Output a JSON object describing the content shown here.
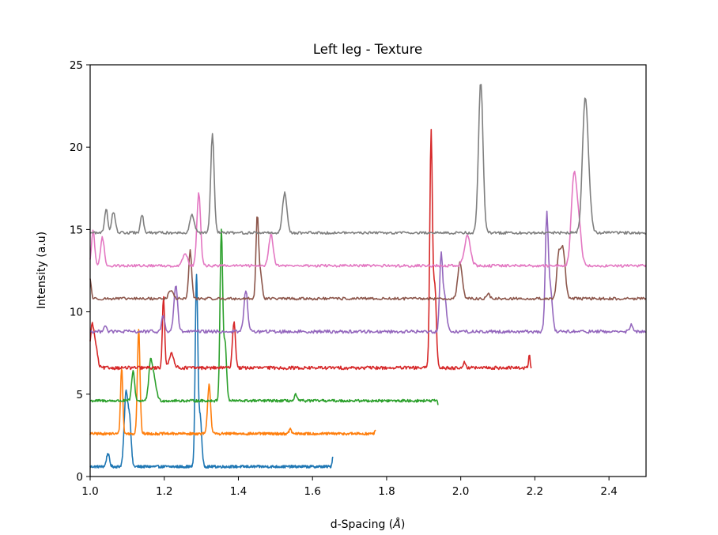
{
  "chart_data": {
    "type": "line",
    "title": "Left leg - Texture",
    "xlabel": "d-Spacing (Å)",
    "xlabel_parts": {
      "text": "d-Spacing (",
      "symbol": "Å",
      "close": ")"
    },
    "ylabel": "Intensity (a.u)",
    "xlim": [
      1.0,
      2.5
    ],
    "ylim": [
      0,
      25
    ],
    "xticks": [
      1.0,
      1.2,
      1.4,
      1.6,
      1.8,
      2.0,
      2.2,
      2.4
    ],
    "xtick_labels": [
      "1.0",
      "1.2",
      "1.4",
      "1.6",
      "1.8",
      "2.0",
      "2.2",
      "2.4"
    ],
    "yticks": [
      0,
      5,
      10,
      15,
      20,
      25
    ],
    "ytick_labels": [
      "0",
      "5",
      "10",
      "15",
      "20",
      "25"
    ],
    "grid": false,
    "legend": "none",
    "series": [
      {
        "color": "#1f77b4",
        "baseline": 0.6,
        "x_start": 1.0,
        "x_end": 1.655,
        "noise": 0.08,
        "peaks": [
          [
            1.048,
            0.8,
            0.004
          ],
          [
            1.097,
            4.5,
            0.005
          ],
          [
            1.107,
            2.5,
            0.004
          ],
          [
            1.287,
            11.5,
            0.0035
          ],
          [
            1.297,
            3.0,
            0.004
          ],
          [
            1.655,
            0.6,
            0.002
          ]
        ]
      },
      {
        "color": "#ff7f0e",
        "baseline": 2.6,
        "x_start": 1.0,
        "x_end": 1.77,
        "noise": 0.08,
        "peaks": [
          [
            1.085,
            4.0,
            0.003
          ],
          [
            1.131,
            6.3,
            0.0035
          ],
          [
            1.321,
            3.0,
            0.004
          ],
          [
            1.54,
            0.3,
            0.003
          ],
          [
            1.77,
            0.2,
            0.002
          ]
        ]
      },
      {
        "color": "#2ca02c",
        "baseline": 4.6,
        "x_start": 1.0,
        "x_end": 1.94,
        "noise": 0.08,
        "peaks": [
          [
            1.116,
            1.8,
            0.004
          ],
          [
            1.163,
            2.2,
            0.005
          ],
          [
            1.173,
            1.2,
            0.006
          ],
          [
            1.354,
            10.3,
            0.0035
          ],
          [
            1.364,
            3.5,
            0.004
          ],
          [
            1.555,
            0.4,
            0.003
          ],
          [
            1.94,
            -0.3,
            0.002
          ]
        ]
      },
      {
        "color": "#d62728",
        "baseline": 6.6,
        "x_start": 1.0,
        "x_end": 2.19,
        "noise": 0.1,
        "peaks": [
          [
            1.005,
            2.5,
            0.005
          ],
          [
            1.015,
            1.2,
            0.005
          ],
          [
            1.198,
            4.4,
            0.003
          ],
          [
            1.22,
            0.9,
            0.006
          ],
          [
            1.388,
            2.8,
            0.004
          ],
          [
            1.92,
            14.2,
            0.0035
          ],
          [
            1.93,
            5.0,
            0.004
          ],
          [
            2.01,
            0.4,
            0.003
          ],
          [
            2.185,
            0.8,
            0.002
          ]
        ]
      },
      {
        "color": "#9467bd",
        "baseline": 8.8,
        "x_start": 1.0,
        "x_end": 2.5,
        "noise": 0.1,
        "peaks": [
          [
            1.04,
            0.4,
            0.004
          ],
          [
            1.197,
            1.0,
            0.004
          ],
          [
            1.231,
            2.8,
            0.005
          ],
          [
            1.42,
            2.5,
            0.005
          ],
          [
            1.947,
            4.5,
            0.004
          ],
          [
            1.957,
            2.0,
            0.005
          ],
          [
            2.232,
            6.9,
            0.004
          ],
          [
            2.242,
            2.5,
            0.005
          ],
          [
            2.46,
            0.5,
            0.003
          ]
        ]
      },
      {
        "color": "#8c564b",
        "baseline": 10.8,
        "x_start": 1.0,
        "x_end": 2.5,
        "noise": 0.08,
        "peaks": [
          [
            1.0,
            1.2,
            0.003
          ],
          [
            1.218,
            0.5,
            0.006
          ],
          [
            1.27,
            2.9,
            0.004
          ],
          [
            1.451,
            5.1,
            0.0035
          ],
          [
            1.46,
            1.5,
            0.004
          ],
          [
            1.998,
            2.2,
            0.006
          ],
          [
            2.074,
            0.3,
            0.004
          ],
          [
            2.264,
            2.5,
            0.005
          ],
          [
            2.276,
            3.0,
            0.006
          ]
        ]
      },
      {
        "color": "#e377c2",
        "baseline": 12.8,
        "x_start": 1.0,
        "x_end": 2.5,
        "noise": 0.08,
        "peaks": [
          [
            1.008,
            2.2,
            0.004
          ],
          [
            1.033,
            1.7,
            0.005
          ],
          [
            1.256,
            0.8,
            0.006
          ],
          [
            1.293,
            4.4,
            0.005
          ],
          [
            1.488,
            1.9,
            0.006
          ],
          [
            2.018,
            1.8,
            0.008
          ],
          [
            2.305,
            5.2,
            0.007
          ],
          [
            2.318,
            2.5,
            0.007
          ]
        ]
      },
      {
        "color": "#7f7f7f",
        "baseline": 14.8,
        "x_start": 1.0,
        "x_end": 2.5,
        "noise": 0.08,
        "peaks": [
          [
            1.043,
            1.5,
            0.004
          ],
          [
            1.063,
            1.3,
            0.005
          ],
          [
            1.14,
            1.1,
            0.004
          ],
          [
            1.275,
            1.1,
            0.006
          ],
          [
            1.33,
            6.1,
            0.0045
          ],
          [
            1.525,
            2.4,
            0.006
          ],
          [
            2.054,
            9.2,
            0.006
          ],
          [
            2.335,
            7.5,
            0.007
          ],
          [
            2.345,
            2.0,
            0.007
          ]
        ]
      }
    ]
  }
}
